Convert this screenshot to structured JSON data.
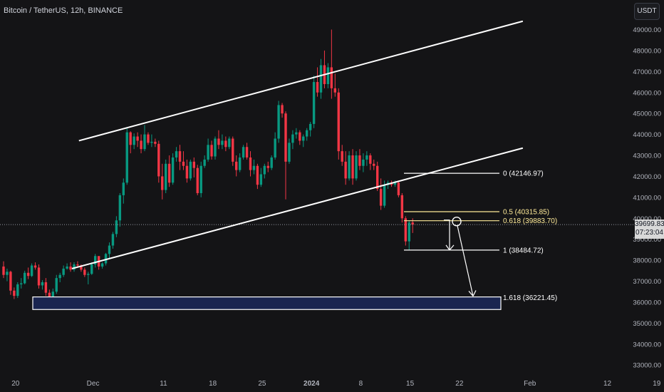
{
  "header": {
    "symbol_title": "Bitcoin / TetherUS, 12h, BINANCE",
    "currency": "USDT"
  },
  "colors": {
    "up": "#089981",
    "down": "#f23645",
    "background": "#141416",
    "fib": "#ffeb99",
    "zone": "#1a2550",
    "lines": "#ffffff"
  },
  "price_badge": {
    "price": "39699.83",
    "countdown": "07:23:04"
  },
  "chart_data": {
    "type": "candlestick",
    "title": "Bitcoin / TetherUS, 12h, BINANCE",
    "xlabel": "",
    "ylabel": "",
    "grid": false,
    "ylim": [
      32700,
      49800
    ],
    "y_ticks": [
      "49000.00",
      "48000.00",
      "47000.00",
      "46000.00",
      "45000.00",
      "44000.00",
      "43000.00",
      "42000.00",
      "41000.00",
      "40000.00",
      "39000.00",
      "38000.00",
      "37000.00",
      "36000.00",
      "35000.00",
      "34000.00",
      "33000.00"
    ],
    "x_ticks": [
      "20",
      "Dec",
      "11",
      "18",
      "25",
      "2024",
      "8",
      "15",
      "22",
      "Feb",
      "12",
      "19"
    ],
    "current_price": 39699.83,
    "candles": [
      [
        37700,
        37950,
        37150,
        37300
      ],
      [
        37300,
        37600,
        37000,
        37450
      ],
      [
        37450,
        37500,
        36350,
        36550
      ],
      [
        36550,
        36700,
        36150,
        36300
      ],
      [
        36300,
        36950,
        36200,
        36850
      ],
      [
        36850,
        37150,
        36650,
        36900
      ],
      [
        36900,
        37500,
        36850,
        37400
      ],
      [
        37400,
        37650,
        37100,
        37250
      ],
      [
        37250,
        37850,
        37200,
        37750
      ],
      [
        37750,
        37900,
        37550,
        37650
      ],
      [
        37650,
        37800,
        36650,
        36800
      ],
      [
        36800,
        37050,
        36600,
        36950
      ],
      [
        36950,
        37150,
        36300,
        36450
      ],
      [
        36450,
        36600,
        35750,
        35900
      ],
      [
        35900,
        36650,
        35700,
        36500
      ],
      [
        36500,
        37300,
        36400,
        37150
      ],
      [
        37150,
        37400,
        36950,
        37300
      ],
      [
        37300,
        37750,
        37200,
        37600
      ],
      [
        37600,
        37850,
        37550,
        37700
      ],
      [
        37700,
        37900,
        37450,
        37550
      ],
      [
        37550,
        37900,
        37450,
        37800
      ],
      [
        37800,
        37950,
        37650,
        37750
      ],
      [
        37750,
        37800,
        37450,
        37550
      ],
      [
        37550,
        37650,
        37200,
        37300
      ],
      [
        37300,
        37450,
        36850,
        37350
      ],
      [
        37350,
        37900,
        37300,
        37800
      ],
      [
        37800,
        38300,
        37650,
        38200
      ],
      [
        38200,
        38150,
        37550,
        37700
      ],
      [
        37700,
        37900,
        37600,
        37850
      ],
      [
        37850,
        38350,
        37750,
        38300
      ],
      [
        38300,
        38850,
        38100,
        38700
      ],
      [
        38700,
        39350,
        38550,
        39250
      ],
      [
        39250,
        40100,
        39100,
        39900
      ],
      [
        39900,
        41200,
        39600,
        41100
      ],
      [
        41100,
        41900,
        40700,
        41700
      ],
      [
        41700,
        44300,
        41600,
        44100
      ],
      [
        44100,
        44150,
        43100,
        43500
      ],
      [
        43500,
        44050,
        43300,
        43900
      ],
      [
        43900,
        44100,
        43400,
        43700
      ],
      [
        43700,
        44000,
        43100,
        43300
      ],
      [
        43300,
        44450,
        43200,
        44000
      ],
      [
        44000,
        44100,
        43500,
        43600
      ],
      [
        43600,
        44000,
        43400,
        43650
      ],
      [
        43650,
        43800,
        43400,
        43550
      ],
      [
        43550,
        43700,
        41700,
        42000
      ],
      [
        42000,
        42600,
        40900,
        41350
      ],
      [
        41350,
        42800,
        41200,
        42600
      ],
      [
        42600,
        43000,
        41500,
        41700
      ],
      [
        41700,
        43100,
        41600,
        42900
      ],
      [
        42900,
        43400,
        42700,
        43200
      ],
      [
        43200,
        43500,
        42300,
        42700
      ],
      [
        42700,
        43200,
        42300,
        42500
      ],
      [
        42500,
        42800,
        41700,
        41900
      ],
      [
        41900,
        42800,
        41800,
        42700
      ],
      [
        42700,
        42900,
        41950,
        42400
      ],
      [
        42400,
        42550,
        41100,
        41200
      ],
      [
        41200,
        42700,
        41000,
        42500
      ],
      [
        42500,
        43000,
        42400,
        42800
      ],
      [
        42800,
        43800,
        42700,
        43500
      ],
      [
        43500,
        43700,
        42800,
        42950
      ],
      [
        42950,
        43900,
        42800,
        43800
      ],
      [
        43800,
        44200,
        43300,
        43500
      ],
      [
        43500,
        44000,
        43300,
        43700
      ],
      [
        43700,
        43900,
        43200,
        43400
      ],
      [
        43400,
        43900,
        43300,
        43800
      ],
      [
        43800,
        43900,
        42500,
        42700
      ],
      [
        42700,
        43000,
        42000,
        42300
      ],
      [
        42300,
        43100,
        42200,
        42900
      ],
      [
        42900,
        43500,
        42800,
        43400
      ],
      [
        43400,
        43600,
        42800,
        42900
      ],
      [
        42900,
        43200,
        42000,
        42300
      ],
      [
        42300,
        42800,
        42100,
        42500
      ],
      [
        42500,
        42600,
        41400,
        41600
      ],
      [
        41600,
        42400,
        41500,
        42100
      ],
      [
        42100,
        42600,
        41900,
        42500
      ],
      [
        42500,
        42700,
        42200,
        42400
      ],
      [
        42400,
        43000,
        42300,
        42900
      ],
      [
        42900,
        44100,
        42800,
        43800
      ],
      [
        43800,
        45600,
        43600,
        45400
      ],
      [
        45400,
        45500,
        44800,
        45000
      ],
      [
        45000,
        45100,
        40900,
        42700
      ],
      [
        42700,
        43800,
        42600,
        43600
      ],
      [
        43600,
        44200,
        43300,
        44000
      ],
      [
        44000,
        44300,
        43800,
        44100
      ],
      [
        44100,
        44200,
        43500,
        43700
      ],
      [
        43700,
        44000,
        43400,
        43900
      ],
      [
        43900,
        44300,
        43700,
        44200
      ],
      [
        44200,
        44600,
        43900,
        44500
      ],
      [
        44500,
        46800,
        44300,
        46500
      ],
      [
        46500,
        47200,
        45800,
        46000
      ],
      [
        46000,
        47600,
        45700,
        47300
      ],
      [
        47300,
        48000,
        46200,
        46400
      ],
      [
        46400,
        47400,
        46200,
        47200
      ],
      [
        47200,
        49000,
        45700,
        46200
      ],
      [
        46200,
        46900,
        45800,
        46000
      ],
      [
        46000,
        46200,
        42800,
        43200
      ],
      [
        43200,
        43500,
        42500,
        42700
      ],
      [
        42700,
        43200,
        41600,
        41900
      ],
      [
        41900,
        43200,
        41800,
        43000
      ],
      [
        43000,
        43300,
        41600,
        41900
      ],
      [
        41900,
        43200,
        41800,
        43000
      ],
      [
        43000,
        43300,
        42300,
        42500
      ],
      [
        42500,
        43100,
        42200,
        42800
      ],
      [
        42800,
        43200,
        42500,
        43000
      ],
      [
        43000,
        43100,
        42300,
        42600
      ],
      [
        42600,
        42800,
        42300,
        42500
      ],
      [
        42500,
        42700,
        41300,
        41400
      ],
      [
        41400,
        41900,
        40400,
        40600
      ],
      [
        40600,
        41800,
        40500,
        41600
      ],
      [
        41600,
        41800,
        41400,
        41700
      ],
      [
        41700,
        41800,
        41500,
        41600
      ],
      [
        41600,
        41800,
        41500,
        41700
      ],
      [
        41700,
        41800,
        41000,
        41100
      ],
      [
        41100,
        41200,
        39800,
        40000
      ],
      [
        40000,
        40100,
        38700,
        38900
      ],
      [
        38900,
        39900,
        38500,
        39800
      ],
      [
        39800,
        40000,
        39300,
        39700
      ]
    ],
    "trendlines": [
      {
        "name": "channel-upper",
        "points": [
          [
            "2023-11-29",
            43700
          ],
          [
            "2024-01-31",
            49400
          ]
        ]
      },
      {
        "name": "channel-lower",
        "points": [
          [
            "2023-11-28",
            37600
          ],
          [
            "2024-01-31",
            43350
          ]
        ]
      }
    ],
    "fibonacci": [
      {
        "ratio": "0",
        "price": 42146.97,
        "label": "0 (42146.97)",
        "color": "#ffffff"
      },
      {
        "ratio": "0.5",
        "price": 40315.85,
        "label": "0.5 (40315.85)",
        "color": "#ffeb99"
      },
      {
        "ratio": "0.618",
        "price": 39883.7,
        "label": "0.618 (39883.70)",
        "color": "#ffeb99"
      },
      {
        "ratio": "1",
        "price": 38484.72,
        "label": "1 (38484.72)",
        "color": "#ffffff"
      },
      {
        "ratio": "1.618",
        "price": 36221.45,
        "label": "1.618 (36221.45)",
        "color": "#ffffff"
      }
    ],
    "target_zone": {
      "from": 35650,
      "to": 36250
    }
  }
}
